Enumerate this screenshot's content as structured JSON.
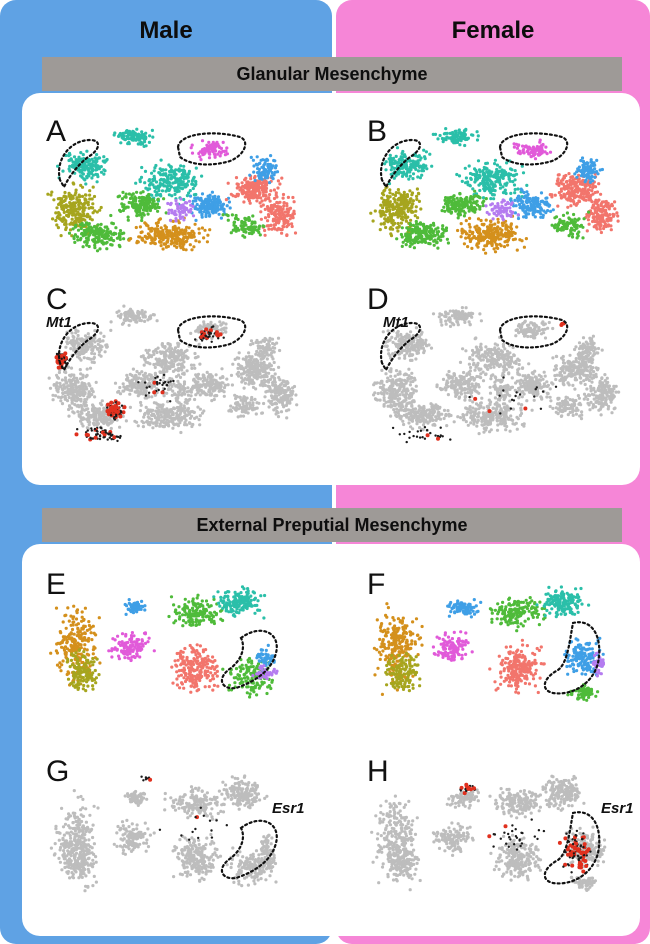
{
  "columns": {
    "male": "Male",
    "female": "Female"
  },
  "sections": {
    "glanular": "Glanular Mesenchyme",
    "preputial": "External Preputial Mesenchyme"
  },
  "panels": {
    "a": "A",
    "b": "B",
    "c": "C",
    "d": "D",
    "e": "E",
    "f": "F",
    "g": "G",
    "h": "H"
  },
  "genes": {
    "mt1": "Mt1",
    "esr1": "Esr1"
  },
  "colors": {
    "male_bg": "#5fa2e4",
    "female_bg": "#f686d7",
    "bar_gray": "#9e9a97",
    "umap_gray": "#bdbdbd",
    "expr_red": "#e0301e",
    "cluster_teal": "#2bbfa9",
    "cluster_green": "#4fbb3a",
    "cluster_olive": "#a6a51e",
    "cluster_orange": "#d4901c",
    "cluster_salmon": "#f2756c",
    "cluster_blue": "#3f9fe6",
    "cluster_magenta": "#e15ad9",
    "cluster_violet": "#b57cf0"
  }
}
